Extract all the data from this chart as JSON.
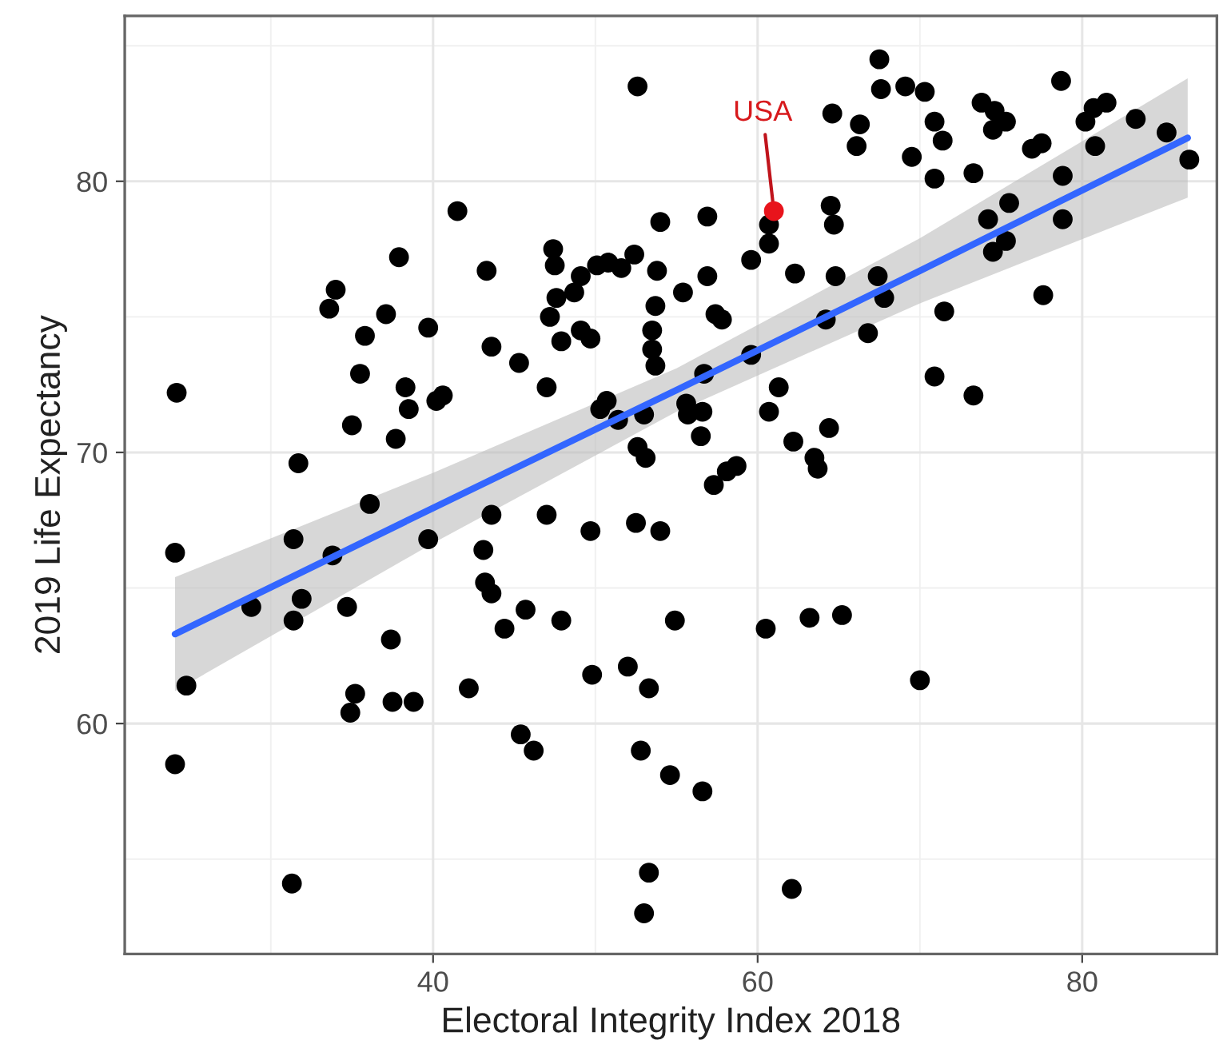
{
  "chart_data": {
    "type": "scatter",
    "xlabel": "Electoral Integrity Index 2018",
    "ylabel": "2019 Life Expectancy",
    "xlim": [
      21,
      88.3
    ],
    "ylim": [
      51.5,
      86.1
    ],
    "xticks": [
      40,
      60,
      80
    ],
    "yticks": [
      60,
      70,
      80
    ],
    "grid": true,
    "series": [
      {
        "color": "#000000",
        "marker": "circle",
        "x": [
          52.6,
          24.2,
          41.5,
          37.9,
          34.0,
          33.6,
          37.1,
          35.8,
          39.7,
          43.3,
          43.6,
          45.3,
          35.5,
          38.3,
          38.5,
          40.2,
          40.6,
          35.0,
          37.7,
          31.7,
          47.0,
          47.4,
          47.5,
          47.6,
          47.2,
          47.9,
          48.7,
          49.1,
          49.1,
          49.7,
          50.1,
          50.8,
          51.6,
          52.4,
          50.7,
          50.3,
          51.4,
          53.0,
          52.6,
          53.1,
          54.0,
          53.8,
          53.7,
          53.5,
          53.5,
          53.7,
          56.9,
          56.9,
          55.4,
          57.4,
          57.8,
          59.6,
          60.7,
          60.7,
          62.3,
          64.8,
          64.7,
          64.5,
          64.6,
          66.3,
          66.1,
          67.5,
          67.6,
          69.1,
          70.3,
          70.9,
          71.4,
          69.5,
          70.9,
          73.3,
          73.8,
          74.6,
          75.3,
          74.5,
          76.9,
          77.5,
          78.7,
          80.2,
          80.7,
          81.5,
          80.8,
          83.3,
          85.2,
          86.6,
          78.8,
          78.8,
          75.5,
          74.2,
          74.5,
          75.3,
          77.6,
          71.5,
          67.4,
          67.8,
          64.2,
          66.8,
          59.6,
          56.7,
          70.9,
          73.3,
          61.3,
          55.6,
          56.6,
          55.7,
          56.5,
          60.7,
          62.2,
          64.4,
          63.5,
          63.7,
          58.1,
          58.7,
          57.3,
          54.0,
          54.9,
          60.5,
          63.2,
          65.2,
          53.3,
          70.0,
          52.8,
          54.6,
          56.6,
          53.3,
          53.0,
          62.1,
          24.1,
          24.8,
          24.1,
          28.8,
          31.4,
          31.9,
          31.4,
          33.8,
          36.1,
          39.7,
          34.7,
          37.4,
          35.2,
          34.9,
          37.5,
          38.8,
          31.3,
          42.2,
          43.6,
          43.1,
          43.2,
          43.6,
          44.4,
          45.7,
          47.0,
          47.9,
          49.7,
          49.8,
          45.4,
          46.2,
          52.0,
          52.5
        ],
        "values": [
          83.5,
          72.2,
          78.9,
          77.2,
          76.0,
          75.3,
          75.1,
          74.3,
          74.6,
          76.7,
          73.9,
          73.3,
          72.9,
          72.4,
          71.6,
          71.9,
          72.1,
          71.0,
          70.5,
          69.6,
          72.4,
          77.5,
          76.9,
          75.7,
          75.0,
          74.1,
          75.9,
          76.5,
          74.5,
          74.2,
          76.9,
          77.0,
          76.8,
          77.3,
          71.9,
          71.6,
          71.2,
          71.4,
          70.2,
          69.8,
          78.5,
          76.7,
          75.4,
          74.5,
          73.8,
          73.2,
          78.7,
          76.5,
          75.9,
          75.1,
          74.9,
          77.1,
          77.7,
          78.4,
          76.6,
          76.5,
          78.4,
          79.1,
          82.5,
          82.1,
          81.3,
          84.5,
          83.4,
          83.5,
          83.3,
          82.2,
          81.5,
          80.9,
          80.1,
          80.3,
          82.9,
          82.6,
          82.2,
          81.9,
          81.2,
          81.4,
          83.7,
          82.2,
          82.7,
          82.9,
          81.3,
          82.3,
          81.8,
          80.8,
          80.2,
          78.6,
          79.2,
          78.6,
          77.4,
          77.8,
          75.8,
          75.2,
          76.5,
          75.7,
          74.9,
          74.4,
          73.6,
          72.9,
          72.8,
          72.1,
          72.4,
          71.8,
          71.5,
          71.4,
          70.6,
          71.5,
          70.4,
          70.9,
          69.8,
          69.4,
          69.3,
          69.5,
          68.8,
          67.1,
          63.8,
          63.5,
          63.9,
          64.0,
          61.3,
          61.6,
          59.0,
          58.1,
          57.5,
          54.5,
          53.0,
          53.9,
          66.3,
          61.4,
          58.5,
          64.3,
          66.8,
          64.6,
          63.8,
          66.2,
          68.1,
          66.8,
          64.3,
          63.1,
          61.1,
          60.4,
          60.8,
          60.8,
          54.1,
          61.3,
          67.7,
          66.4,
          65.2,
          64.8,
          63.5,
          64.2,
          67.7,
          63.8,
          67.1,
          61.8,
          59.6,
          59.0,
          62.1,
          67.4
        ]
      },
      {
        "type": "line",
        "color": "#3366ff",
        "x": [
          24.1,
          40,
          55,
          70,
          86.5
        ],
        "values": [
          63.3,
          67.95,
          72.3,
          76.7,
          81.6
        ],
        "lower": [
          61.2,
          66.65,
          71.5,
          75.5,
          79.4
        ],
        "upper": [
          65.4,
          69.25,
          73.1,
          77.9,
          83.8
        ]
      },
      {
        "color": "#e8141c",
        "marker": "circle",
        "x": [
          61.0
        ],
        "values": [
          78.9
        ]
      }
    ],
    "annotations": [
      {
        "text": "USA",
        "x": 61.0,
        "y": 78.9
      }
    ]
  }
}
